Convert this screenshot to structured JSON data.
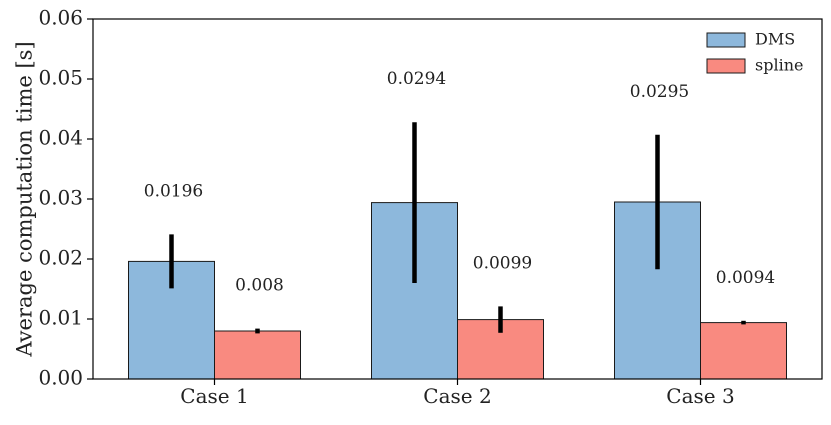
{
  "chart_data": {
    "type": "bar",
    "title": "",
    "xlabel": "",
    "ylabel": "Average computation time [s]",
    "categories": [
      "Case 1",
      "Case 2",
      "Case 3"
    ],
    "ylim": [
      0,
      0.06
    ],
    "yticks": [
      "0.00",
      "0.01",
      "0.02",
      "0.03",
      "0.04",
      "0.05",
      "0.06"
    ],
    "grid": false,
    "legend_position": "top-right",
    "series": [
      {
        "name": "DMS",
        "color": "#8db8dc",
        "values": [
          0.0196,
          0.0294,
          0.0295
        ],
        "error": [
          0.0045,
          0.0134,
          0.0112
        ],
        "value_labels": [
          "0.0196",
          "0.0294",
          "0.0295"
        ]
      },
      {
        "name": "spline",
        "color": "#f98a80",
        "values": [
          0.008,
          0.0099,
          0.0094
        ],
        "error": [
          0.0004,
          0.0022,
          0.0003
        ],
        "value_labels": [
          "0.008",
          "0.0099",
          "0.0094"
        ]
      }
    ]
  }
}
